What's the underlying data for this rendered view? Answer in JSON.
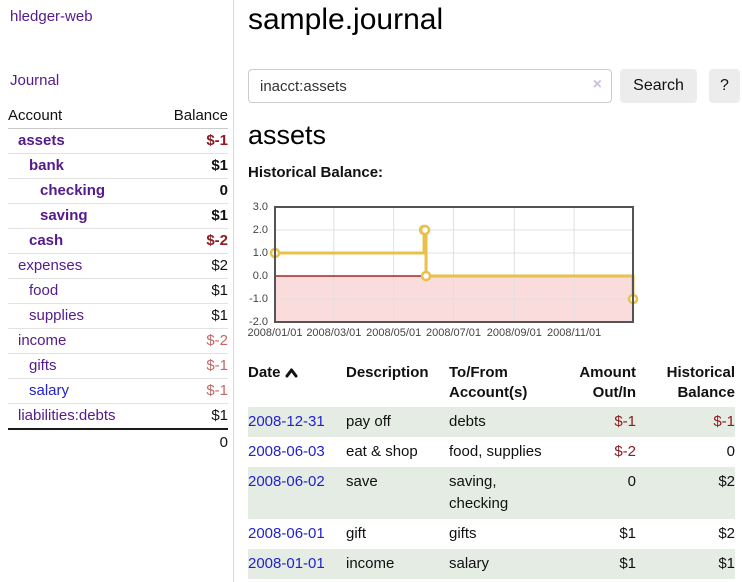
{
  "app": {
    "brand": "hledger-web"
  },
  "sidebar": {
    "journal_label": "Journal",
    "accounts_table": {
      "headers": {
        "account": "Account",
        "balance": "Balance"
      },
      "rows": [
        {
          "name": "assets",
          "balance": "$-1",
          "depth": 1,
          "bold": true,
          "name_color": "purple",
          "balance_color": "neg-strong"
        },
        {
          "name": "bank",
          "balance": "$1",
          "depth": 2,
          "bold": true,
          "name_color": "purple",
          "balance_color": "normal"
        },
        {
          "name": "checking",
          "balance": "0",
          "depth": 3,
          "bold": true,
          "name_color": "purple",
          "balance_color": "normal"
        },
        {
          "name": "saving",
          "balance": "$1",
          "depth": 3,
          "bold": true,
          "name_color": "purple",
          "balance_color": "normal"
        },
        {
          "name": "cash",
          "balance": "$-2",
          "depth": 2,
          "bold": true,
          "name_color": "purple",
          "balance_color": "neg-strong"
        },
        {
          "name": "expenses",
          "balance": "$2",
          "depth": 1,
          "bold": false,
          "name_color": "purple",
          "balance_color": "normal"
        },
        {
          "name": "food",
          "balance": "$1",
          "depth": 2,
          "bold": false,
          "name_color": "purple",
          "balance_color": "normal"
        },
        {
          "name": "supplies",
          "balance": "$1",
          "depth": 2,
          "bold": false,
          "name_color": "purple",
          "balance_color": "normal"
        },
        {
          "name": "income",
          "balance": "$-2",
          "depth": 1,
          "bold": false,
          "name_color": "purple",
          "balance_color": "neg-soft"
        },
        {
          "name": "gifts",
          "balance": "$-1",
          "depth": 2,
          "bold": false,
          "name_color": "purple",
          "balance_color": "neg-soft"
        },
        {
          "name": "salary",
          "balance": "$-1",
          "depth": 2,
          "bold": false,
          "name_color": "blue",
          "balance_color": "neg-soft"
        },
        {
          "name": "liabilities:debts",
          "balance": "$1",
          "depth": 1,
          "bold": false,
          "name_color": "purple",
          "balance_color": "normal"
        }
      ],
      "total": "0"
    }
  },
  "header": {
    "title": "sample.journal"
  },
  "search": {
    "value": "inacct:assets",
    "clear_icon": "×",
    "button_label": "Search",
    "help_label": "?"
  },
  "account_page": {
    "title": "assets",
    "chart_label": "Historical Balance:"
  },
  "chart_data": {
    "type": "line",
    "title": "Historical Balance",
    "step": true,
    "xlim_dates": [
      "2008-01-01",
      "2008-12-31"
    ],
    "ylim": [
      -2,
      3
    ],
    "y_ticks": [
      "3.0",
      "2.0",
      "1.0",
      "0.0",
      "-1.0",
      "-2.0"
    ],
    "x_ticks": [
      {
        "label": "2008/01/01",
        "date": "2008-01-01"
      },
      {
        "label": "2008/03/01",
        "date": "2008-03-01"
      },
      {
        "label": "2008/05/01",
        "date": "2008-05-01"
      },
      {
        "label": "2008/07/01",
        "date": "2008-07-01"
      },
      {
        "label": "2008/09/01",
        "date": "2008-09-01"
      },
      {
        "label": "2008/11/01",
        "date": "2008-11-01"
      }
    ],
    "series": [
      {
        "name": "$",
        "color": "#e9c04a",
        "points": [
          {
            "date": "2008-01-01",
            "value": 1
          },
          {
            "date": "2008-06-01",
            "value": 2
          },
          {
            "date": "2008-06-02",
            "value": 2
          },
          {
            "date": "2008-06-03",
            "value": 0
          },
          {
            "date": "2008-12-31",
            "value": -1
          }
        ]
      }
    ],
    "grid": true,
    "grid_color": "#e0e0e0",
    "border_color": "#545454",
    "negative_region_color": "#fbdcdc",
    "zero_line_color": "#8b0000",
    "legend": {
      "label": "$",
      "position": "top-right"
    }
  },
  "register_table": {
    "columns": {
      "date": "Date",
      "description": "Description",
      "accounts": "To/From Account(s)",
      "amount": "Amount Out/In",
      "balance": "Historical Balance"
    },
    "rows": [
      {
        "date": "2008-12-31",
        "description": "pay off",
        "accounts": "debts",
        "amount": "$-1",
        "balance": "$-1",
        "amount_negative": true,
        "balance_negative": true
      },
      {
        "date": "2008-06-03",
        "description": "eat & shop",
        "accounts": "food, supplies",
        "amount": "$-2",
        "balance": "0",
        "amount_negative": true,
        "balance_negative": false
      },
      {
        "date": "2008-06-02",
        "description": "save",
        "accounts": "saving, checking",
        "amount": "0",
        "balance": "$2",
        "amount_negative": false,
        "balance_negative": false
      },
      {
        "date": "2008-06-01",
        "description": "gift",
        "accounts": "gifts",
        "amount": "$1",
        "balance": "$2",
        "amount_negative": false,
        "balance_negative": false
      },
      {
        "date": "2008-01-01",
        "description": "income",
        "accounts": "salary",
        "amount": "$1",
        "balance": "$1",
        "amount_negative": false,
        "balance_negative": false
      }
    ]
  }
}
